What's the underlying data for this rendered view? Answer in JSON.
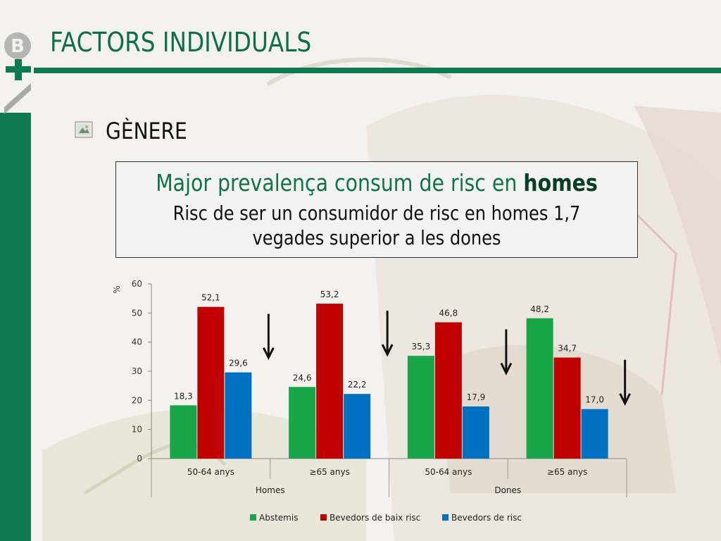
{
  "header": {
    "title": "FACTORS INDIVIDUALS"
  },
  "section": {
    "heading": "GÈNERE"
  },
  "callout": {
    "headline_prefix": "Major prevalença consum de risc en ",
    "headline_emphasis": "homes",
    "body": "Risc de ser un consumidor de risc en homes 1,7 vegades superior a les dones"
  },
  "colors": {
    "brand_green": "#0e7a4f",
    "abstemis": "#19a64a",
    "baix_risc": "#c00000",
    "risc": "#0070c0"
  },
  "icons": {
    "logo": "b-plus-logo",
    "bullet": "picture-bullet-icon",
    "arrow": "down-arrow-icon"
  },
  "chart_data": {
    "type": "bar",
    "ylabel": "%",
    "ylim": [
      0,
      60
    ],
    "yticks": [
      0,
      10,
      20,
      30,
      40,
      50,
      60
    ],
    "categories": [
      "50-64 anys",
      "≥65 anys",
      "50-64 anys",
      "≥65 anys"
    ],
    "groups": [
      {
        "label": "Homes",
        "categories": [
          "50-64 anys",
          "≥65 anys"
        ]
      },
      {
        "label": "Dones",
        "categories": [
          "50-64 anys",
          "≥65 anys"
        ]
      }
    ],
    "series": [
      {
        "name": "Abstemis",
        "values": [
          18.3,
          24.6,
          35.3,
          48.2
        ],
        "labels": [
          "18,3",
          "24,6",
          "35,3",
          "48,2"
        ]
      },
      {
        "name": "Bevedors de baix risc",
        "values": [
          52.1,
          53.2,
          46.8,
          34.7
        ],
        "labels": [
          "52,1",
          "53,2",
          "46,8",
          "34,7"
        ]
      },
      {
        "name": "Bevedors de risc",
        "values": [
          29.6,
          22.2,
          17.9,
          17.0
        ],
        "labels": [
          "29,6",
          "22,2",
          "17,9",
          "17,0"
        ]
      }
    ],
    "legend_position": "bottom",
    "grid": false
  }
}
